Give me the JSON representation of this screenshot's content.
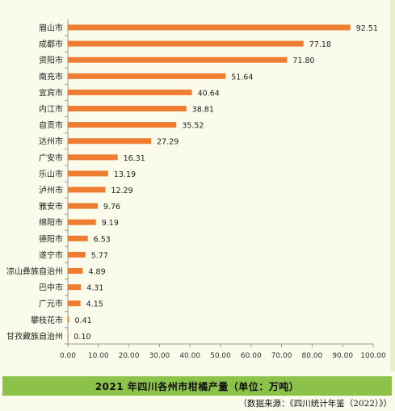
{
  "chart_data": {
    "type": "bar",
    "orientation": "horizontal",
    "categories": [
      "眉山市",
      "成都市",
      "资阳市",
      "南充市",
      "宜宾市",
      "内江市",
      "自贡市",
      "达州市",
      "广安市",
      "乐山市",
      "泸州市",
      "雅安市",
      "绵阳市",
      "德阳市",
      "遂宁市",
      "凉山彝族自治州",
      "巴中市",
      "广元市",
      "攀枝花市",
      "甘孜藏族自治州"
    ],
    "values": [
      92.51,
      77.18,
      71.8,
      51.64,
      40.64,
      38.81,
      35.52,
      27.29,
      16.31,
      13.19,
      12.29,
      9.76,
      9.19,
      6.53,
      5.77,
      4.89,
      4.31,
      4.15,
      0.41,
      0.1
    ],
    "value_labels": [
      "92.51",
      "77.18",
      "71.80",
      "51.64",
      "40.64",
      "38.81",
      "35.52",
      "27.29",
      "16.31",
      "13.19",
      "12.29",
      "9.76",
      "9.19",
      "6.53",
      "5.77",
      "4.89",
      "4.31",
      "4.15",
      "0.41",
      "0.10"
    ],
    "xlim": [
      0,
      100
    ],
    "x_ticks": [
      "0.00",
      "10.00",
      "20.00",
      "30.00",
      "40.00",
      "50.00",
      "60.00",
      "70.00",
      "80.00",
      "90.00",
      "100.00"
    ],
    "grid": false,
    "bar_color": "#ed7d31"
  },
  "caption": "2021 年四川各州市柑橘产量（单位：万吨）",
  "source": "（数据来源：《四川统计年鉴（2022）》）"
}
